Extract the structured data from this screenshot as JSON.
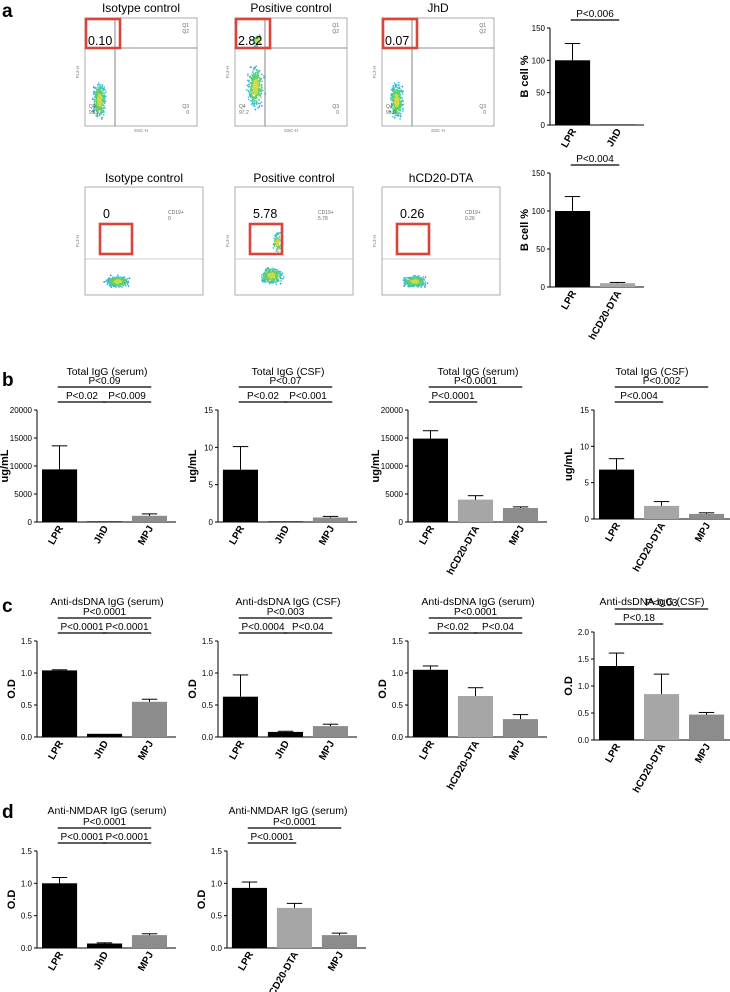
{
  "panels": [
    {
      "key": "a",
      "label": "a"
    },
    {
      "key": "b",
      "label": "b"
    },
    {
      "key": "c",
      "label": "c"
    },
    {
      "key": "d",
      "label": "d"
    }
  ],
  "flow_plots": [
    {
      "title": "Isotype control",
      "gate": "0.10",
      "style": "quad",
      "density": "single",
      "quad_labels": [
        "Q1",
        "Q2",
        "Q4",
        "99.9",
        "Q3",
        "0"
      ],
      "axis_x": "SSC-H",
      "axis_y": "FL3-H"
    },
    {
      "title": "Positive control",
      "gate": "2.82",
      "style": "quad",
      "density": "double",
      "quad_labels": [
        "Q1",
        "Q2",
        "Q4",
        "97.2",
        "Q3",
        "0"
      ],
      "axis_x": "SSC-H",
      "axis_y": "FL3-H"
    },
    {
      "title": "JhD",
      "gate": "0.07",
      "style": "quad",
      "density": "single",
      "quad_labels": [
        "Q1",
        "Q2",
        "Q4",
        "99.9",
        "Q3",
        "0"
      ],
      "axis_x": "SSC-H",
      "axis_y": "FL3-H"
    },
    {
      "title": "Isotype control",
      "gate": "0",
      "style": "cd19",
      "density": "blob",
      "quad_labels": [
        "CD19+",
        "0"
      ],
      "axis_x": "",
      "axis_y": "FL3-H"
    },
    {
      "title": "Positive control",
      "gate": "5.78",
      "style": "cd19",
      "density": "blobdiag",
      "quad_labels": [
        "CD19+",
        "5.78"
      ],
      "axis_x": "",
      "axis_y": "FL3-H"
    },
    {
      "title": "hCD20-DTA",
      "gate": "0.26",
      "style": "cd19",
      "density": "blob",
      "quad_labels": [
        "CD19+",
        "0.26"
      ],
      "axis_x": "",
      "axis_y": "FL3-H"
    }
  ],
  "chart_data": [
    {
      "id": "a1",
      "type": "bar",
      "title": "",
      "ylabel": "B cell %",
      "categories": [
        "LPR",
        "JhD"
      ],
      "values": [
        100,
        1
      ],
      "errors": [
        26,
        0
      ],
      "colors": [
        "#000000",
        "#000000"
      ],
      "ylim": [
        0,
        150
      ],
      "yticks": [
        "0",
        "50",
        "100",
        "150"
      ],
      "rotate": true,
      "pvalues": [
        {
          "text": "P<0.006",
          "from": 0,
          "to": 1,
          "level": 0
        }
      ]
    },
    {
      "id": "a2",
      "type": "bar",
      "title": "",
      "ylabel": "B cell %",
      "categories": [
        "LPR",
        "hCD20-DTA"
      ],
      "values": [
        100,
        5
      ],
      "errors": [
        19,
        1
      ],
      "colors": [
        "#000000",
        "#a6a6a6"
      ],
      "ylim": [
        0,
        150
      ],
      "yticks": [
        "0",
        "50",
        "100",
        "150"
      ],
      "rotate": true,
      "pvalues": [
        {
          "text": "P<0.004",
          "from": 0,
          "to": 1,
          "level": 0
        }
      ]
    },
    {
      "id": "b1",
      "type": "bar",
      "title": "Total IgG (serum)",
      "ylabel": "ug/mL",
      "categories": [
        "LPR",
        "JhD",
        "MPJ"
      ],
      "values": [
        9400,
        30,
        1100
      ],
      "errors": [
        4200,
        0,
        350
      ],
      "colors": [
        "#000000",
        "#000000",
        "#8c8c8c"
      ],
      "ylim": [
        0,
        20000
      ],
      "yticks": [
        "0",
        "5000",
        "10000",
        "15000",
        "20000"
      ],
      "rotate": true,
      "pvalues": [
        {
          "text": "P<0.02",
          "from": 0,
          "to": 1,
          "level": 0
        },
        {
          "text": "P<0.009",
          "from": 1,
          "to": 2,
          "level": 0
        },
        {
          "text": "P<0.09",
          "from": 0,
          "to": 2,
          "level": 1
        }
      ]
    },
    {
      "id": "b2",
      "type": "bar",
      "title": "Total IgG (CSF)",
      "ylabel": "ug/mL",
      "categories": [
        "LPR",
        "JhD",
        "MPJ"
      ],
      "values": [
        7,
        0.05,
        0.6
      ],
      "errors": [
        3.1,
        0,
        0.15
      ],
      "colors": [
        "#000000",
        "#000000",
        "#8c8c8c"
      ],
      "ylim": [
        0,
        15
      ],
      "yticks": [
        "0",
        "5",
        "10",
        "15"
      ],
      "rotate": true,
      "pvalues": [
        {
          "text": "P<0.02",
          "from": 0,
          "to": 1,
          "level": 0
        },
        {
          "text": "P<0.001",
          "from": 1,
          "to": 2,
          "level": 0
        },
        {
          "text": "P<0.07",
          "from": 0,
          "to": 2,
          "level": 1
        }
      ]
    },
    {
      "id": "b3",
      "type": "bar",
      "title": "Total IgG (serum)",
      "ylabel": "ug/mL",
      "categories": [
        "LPR",
        "hCD20-DTA",
        "MPJ"
      ],
      "values": [
        14900,
        4000,
        2500
      ],
      "errors": [
        1400,
        700,
        200
      ],
      "colors": [
        "#000000",
        "#a6a6a6",
        "#8c8c8c"
      ],
      "ylim": [
        0,
        20000
      ],
      "yticks": [
        "0",
        "5000",
        "10000",
        "15000",
        "20000"
      ],
      "rotate": true,
      "pvalues": [
        {
          "text": "P<0.0001",
          "from": 0,
          "to": 1,
          "level": 0
        },
        {
          "text": "P<0.0001",
          "from": 0,
          "to": 2,
          "level": 1
        }
      ]
    },
    {
      "id": "b4",
      "type": "bar",
      "title": "Total IgG (CSF)",
      "ylabel": "ug/mL",
      "categories": [
        "LPR",
        "hCD20-DTA",
        "MPJ"
      ],
      "values": [
        6.8,
        1.8,
        0.7
      ],
      "errors": [
        1.5,
        0.6,
        0.15
      ],
      "colors": [
        "#000000",
        "#a6a6a6",
        "#8c8c8c"
      ],
      "ylim": [
        0,
        15
      ],
      "yticks": [
        "0",
        "5",
        "10",
        "15"
      ],
      "rotate": true,
      "pvalues": [
        {
          "text": "P<0.004",
          "from": 0,
          "to": 1,
          "level": 0
        },
        {
          "text": "P<0.002",
          "from": 0,
          "to": 2,
          "level": 1
        }
      ]
    },
    {
      "id": "c1",
      "type": "bar",
      "title": "Anti-dsDNA IgG (serum)",
      "ylabel": "O.D",
      "categories": [
        "LPR",
        "JhD",
        "MPJ"
      ],
      "values": [
        1.04,
        0.05,
        0.55
      ],
      "errors": [
        0.01,
        0,
        0.04
      ],
      "colors": [
        "#000000",
        "#000000",
        "#8c8c8c"
      ],
      "ylim": [
        0,
        1.5
      ],
      "yticks": [
        "0.0",
        "0.5",
        "1.0",
        "1.5"
      ],
      "rotate": true,
      "pvalues": [
        {
          "text": "P<0.0001",
          "from": 0,
          "to": 1,
          "level": 0
        },
        {
          "text": "P<0.0001",
          "from": 1,
          "to": 2,
          "level": 0
        },
        {
          "text": "P<0.0001",
          "from": 0,
          "to": 2,
          "level": 1
        }
      ]
    },
    {
      "id": "c2",
      "type": "bar",
      "title": "Anti-dsDNA IgG (CSF)",
      "ylabel": "O.D",
      "categories": [
        "LPR",
        "JhD",
        "MPJ"
      ],
      "values": [
        0.63,
        0.08,
        0.17
      ],
      "errors": [
        0.34,
        0.01,
        0.03
      ],
      "colors": [
        "#000000",
        "#000000",
        "#8c8c8c"
      ],
      "ylim": [
        0,
        1.5
      ],
      "yticks": [
        "0.0",
        "0.5",
        "1.0",
        "1.5"
      ],
      "rotate": true,
      "pvalues": [
        {
          "text": "P<0.0004",
          "from": 0,
          "to": 1,
          "level": 0
        },
        {
          "text": "P<0.04",
          "from": 1,
          "to": 2,
          "level": 0
        },
        {
          "text": "P<0.003",
          "from": 0,
          "to": 2,
          "level": 1
        }
      ]
    },
    {
      "id": "c3",
      "type": "bar",
      "title": "Anti-dsDNA IgG (serum)",
      "ylabel": "O.D",
      "categories": [
        "LPR",
        "hCD20-DTA",
        "MPJ"
      ],
      "values": [
        1.05,
        0.64,
        0.28
      ],
      "errors": [
        0.06,
        0.13,
        0.07
      ],
      "colors": [
        "#000000",
        "#a6a6a6",
        "#8c8c8c"
      ],
      "ylim": [
        0,
        1.5
      ],
      "yticks": [
        "0.0",
        "0.5",
        "1.0",
        "1.5"
      ],
      "rotate": true,
      "pvalues": [
        {
          "text": "P<0.02",
          "from": 0,
          "to": 1,
          "level": 0
        },
        {
          "text": "P<0.04",
          "from": 1,
          "to": 2,
          "level": 0
        },
        {
          "text": "P<0.0001",
          "from": 0,
          "to": 2,
          "level": 1
        }
      ]
    },
    {
      "id": "c4",
      "type": "bar",
      "title": "Anti-dsDNA IgG (CSF)",
      "ylabel": "O.D",
      "categories": [
        "LPR",
        "hCD20-DTA",
        "MPJ"
      ],
      "values": [
        1.37,
        0.85,
        0.47
      ],
      "errors": [
        0.24,
        0.37,
        0.04
      ],
      "colors": [
        "#000000",
        "#a6a6a6",
        "#8c8c8c"
      ],
      "ylim": [
        0,
        2.0
      ],
      "yticks": [
        "0.0",
        "0.5",
        "1.0",
        "1.5",
        "2.0"
      ],
      "rotate": true,
      "pvalues": [
        {
          "text": "P<0.18",
          "from": 0,
          "to": 1,
          "level": 0
        },
        {
          "text": "P<0.03",
          "from": 0,
          "to": 2,
          "level": 1
        }
      ]
    },
    {
      "id": "d1",
      "type": "bar",
      "title": "Anti-NMDAR IgG (serum)",
      "ylabel": "O.D",
      "categories": [
        "LPR",
        "JhD",
        "MPJ"
      ],
      "values": [
        1.0,
        0.07,
        0.2
      ],
      "errors": [
        0.09,
        0.01,
        0.02
      ],
      "colors": [
        "#000000",
        "#000000",
        "#8c8c8c"
      ],
      "ylim": [
        0,
        1.5
      ],
      "yticks": [
        "0.0",
        "0.5",
        "1.0",
        "1.5"
      ],
      "rotate": true,
      "pvalues": [
        {
          "text": "P<0.0001",
          "from": 0,
          "to": 1,
          "level": 0
        },
        {
          "text": "P<0.0001",
          "from": 1,
          "to": 2,
          "level": 0
        },
        {
          "text": "P<0.0001",
          "from": 0,
          "to": 2,
          "level": 1
        }
      ]
    },
    {
      "id": "d2",
      "type": "bar",
      "title": "Anti-NMDAR IgG (serum)",
      "ylabel": "O.D",
      "categories": [
        "LPR",
        "hCD20-DTA",
        "MPJ"
      ],
      "values": [
        0.93,
        0.62,
        0.2
      ],
      "errors": [
        0.09,
        0.07,
        0.03
      ],
      "colors": [
        "#000000",
        "#a6a6a6",
        "#8c8c8c"
      ],
      "ylim": [
        0,
        1.5
      ],
      "yticks": [
        "0.0",
        "0.5",
        "1.0",
        "1.5"
      ],
      "rotate": true,
      "pvalues": [
        {
          "text": "P<0.0001",
          "from": 0,
          "to": 1,
          "level": 0
        },
        {
          "text": "P<0.0001",
          "from": 0,
          "to": 2,
          "level": 1
        }
      ]
    }
  ]
}
